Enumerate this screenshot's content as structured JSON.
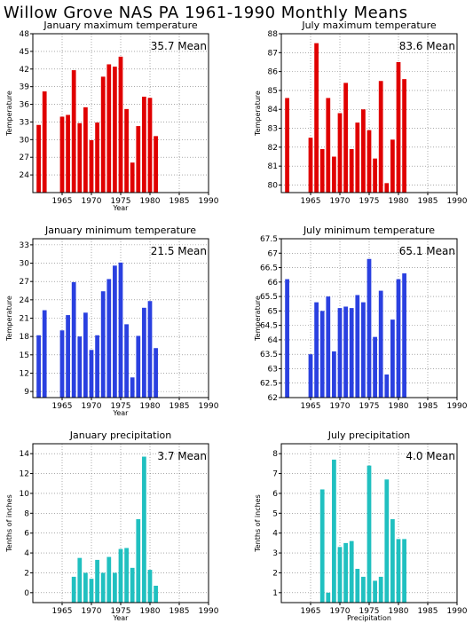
{
  "title": "Willow Grove NAS PA  1961-1990 Monthly Means",
  "chart_data": [
    {
      "type": "bar",
      "title": "January maximum temperature",
      "ylabel": "Temperature",
      "xlabel": "Year",
      "mean_label": "35.7 Mean",
      "color": "#e00000",
      "xlim": [
        1960,
        1990
      ],
      "ylim": [
        21,
        48
      ],
      "yticks": [
        24,
        27,
        30,
        33,
        36,
        39,
        42,
        45,
        48
      ],
      "xticks": [
        1965,
        1970,
        1975,
        1980,
        1985,
        1990
      ],
      "x": [
        1961,
        1962,
        1965,
        1966,
        1967,
        1968,
        1969,
        1970,
        1971,
        1972,
        1973,
        1974,
        1975,
        1976,
        1977,
        1978,
        1979,
        1980,
        1981
      ],
      "values": [
        32.5,
        38.2,
        33.9,
        34.2,
        41.8,
        32.8,
        35.5,
        29.9,
        32.9,
        40.7,
        42.8,
        42.4,
        44.1,
        35.2,
        26.1,
        32.3,
        37.3,
        37.1,
        30.6
      ]
    },
    {
      "type": "bar",
      "title": "July maximum temperature",
      "ylabel": "Temperature",
      "xlabel": "",
      "mean_label": "83.6 Mean",
      "color": "#e00000",
      "xlim": [
        1960,
        1990
      ],
      "ylim": [
        79.6,
        88
      ],
      "yticks": [
        80,
        81,
        82,
        83,
        84,
        85,
        86,
        87,
        88
      ],
      "xticks": [
        1965,
        1970,
        1975,
        1980,
        1985,
        1990
      ],
      "x": [
        1961,
        1965,
        1966,
        1967,
        1968,
        1969,
        1970,
        1971,
        1972,
        1973,
        1974,
        1975,
        1976,
        1977,
        1978,
        1979,
        1980,
        1981
      ],
      "values": [
        84.6,
        82.5,
        87.5,
        81.9,
        84.6,
        81.5,
        83.8,
        85.4,
        81.9,
        83.3,
        84.0,
        82.9,
        81.4,
        85.5,
        80.1,
        82.4,
        86.5,
        85.6
      ]
    },
    {
      "type": "bar",
      "title": "January minimum temperature",
      "ylabel": "Temperature",
      "xlabel": "Year",
      "mean_label": "21.5 Mean",
      "color": "#2a40e0",
      "xlim": [
        1960,
        1990
      ],
      "ylim": [
        8,
        34
      ],
      "yticks": [
        9,
        12,
        15,
        18,
        21,
        24,
        27,
        30,
        33
      ],
      "xticks": [
        1965,
        1970,
        1975,
        1980,
        1985,
        1990
      ],
      "x": [
        1961,
        1962,
        1965,
        1966,
        1967,
        1968,
        1969,
        1970,
        1971,
        1972,
        1973,
        1974,
        1975,
        1976,
        1977,
        1978,
        1979,
        1980,
        1981
      ],
      "values": [
        18.2,
        22.3,
        19.0,
        21.5,
        26.9,
        18.0,
        21.9,
        15.8,
        18.2,
        25.4,
        27.4,
        29.6,
        30.1,
        20.0,
        11.3,
        18.1,
        22.7,
        23.8,
        16.1
      ]
    },
    {
      "type": "bar",
      "title": "July minimum temperature",
      "ylabel": "Temperature",
      "xlabel": "",
      "mean_label": "65.1 Mean",
      "color": "#2a40e0",
      "xlim": [
        1960,
        1990
      ],
      "ylim": [
        62,
        67.5
      ],
      "yticks": [
        62,
        62.5,
        63,
        63.5,
        64,
        64.5,
        65,
        65.5,
        66,
        66.5,
        67,
        67.5
      ],
      "xticks": [
        1965,
        1970,
        1975,
        1980,
        1985,
        1990
      ],
      "x": [
        1961,
        1965,
        1966,
        1967,
        1968,
        1969,
        1970,
        1971,
        1972,
        1973,
        1974,
        1975,
        1976,
        1977,
        1978,
        1979,
        1980,
        1981
      ],
      "values": [
        66.1,
        63.5,
        65.3,
        65.0,
        65.5,
        63.6,
        65.1,
        65.15,
        65.1,
        65.55,
        65.3,
        66.8,
        64.1,
        65.7,
        62.8,
        64.7,
        66.1,
        66.3
      ]
    },
    {
      "type": "bar",
      "title": "January precipitation",
      "ylabel": "Tenths of inches",
      "xlabel": "Year",
      "mean_label": "3.7 Mean",
      "color": "#20c0c0",
      "xlim": [
        1960,
        1990
      ],
      "ylim": [
        -1,
        15
      ],
      "yticks": [
        0,
        2,
        4,
        6,
        8,
        10,
        12,
        14
      ],
      "xticks": [
        1965,
        1970,
        1975,
        1980,
        1985,
        1990
      ],
      "x": [
        1967,
        1968,
        1969,
        1970,
        1971,
        1972,
        1973,
        1974,
        1975,
        1976,
        1977,
        1978,
        1979,
        1980,
        1981
      ],
      "values": [
        1.6,
        3.5,
        2.0,
        1.4,
        3.3,
        2.0,
        3.6,
        2.0,
        4.4,
        4.5,
        2.5,
        7.4,
        13.7,
        2.3,
        0.7
      ]
    },
    {
      "type": "bar",
      "title": "July precipitation",
      "ylabel": "Tenths of inches",
      "xlabel": "Precipitation",
      "mean_label": "4.0 Mean",
      "color": "#20c0c0",
      "xlim": [
        1960,
        1990
      ],
      "ylim": [
        0.5,
        8.5
      ],
      "yticks": [
        1,
        2,
        3,
        4,
        5,
        6,
        7,
        8
      ],
      "xticks": [
        1965,
        1970,
        1975,
        1980,
        1985,
        1990
      ],
      "x": [
        1967,
        1968,
        1969,
        1970,
        1971,
        1972,
        1973,
        1974,
        1975,
        1976,
        1977,
        1978,
        1979,
        1980,
        1981
      ],
      "values": [
        6.2,
        1.0,
        7.7,
        3.3,
        3.5,
        3.6,
        2.2,
        1.8,
        7.4,
        1.6,
        1.8,
        6.7,
        4.7,
        3.7,
        3.7
      ]
    }
  ]
}
